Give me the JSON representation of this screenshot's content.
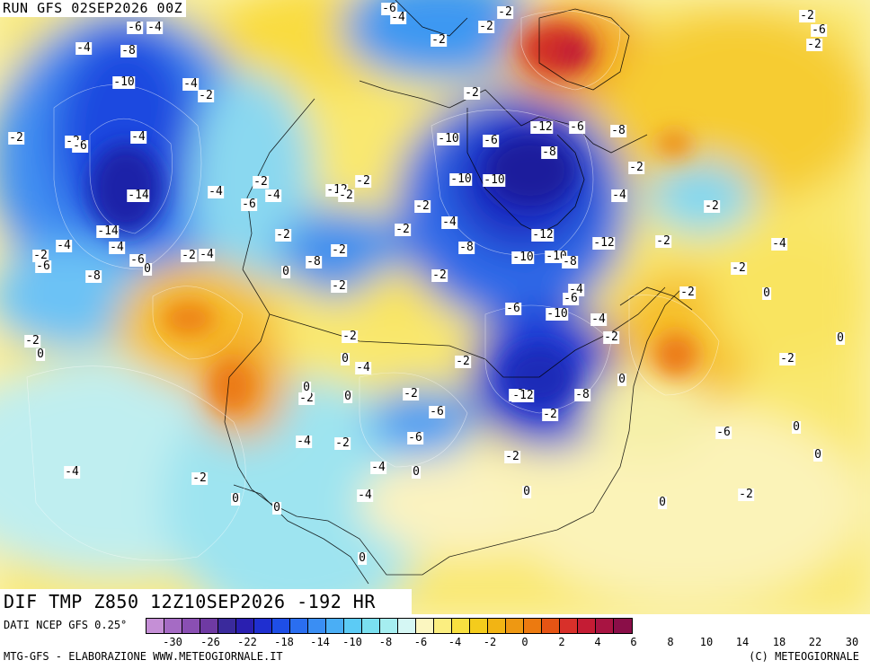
{
  "run_title": "RUN GFS 02SEP2026 00Z",
  "field_title": "DIF TMP Z850 12Z10SEP2026 -192 HR",
  "data_source": "DATI NCEP GFS 0.25°",
  "credit_left": "MTG-GFS - ELABORAZIONE WWW.METEOGIORNALE.IT",
  "credit_right": "(C) METEOGIORNALE",
  "colorbar": {
    "colors": [
      "#c58fd6",
      "#a56bc4",
      "#8a4fb3",
      "#6f3aa3",
      "#3a2a9c",
      "#2a1fb0",
      "#1f2fd0",
      "#1e4ee6",
      "#2a6ef0",
      "#3a8ef3",
      "#4aaef5",
      "#5ccbf5",
      "#7ae0f0",
      "#a5eef0",
      "#d5f7f4",
      "#fbf6c0",
      "#fbee80",
      "#f8e040",
      "#f4cc1c",
      "#f2b414",
      "#ee9812",
      "#ec7a10",
      "#e65414",
      "#d8302a",
      "#c41c34",
      "#a81442",
      "#8a0e48"
    ],
    "ticks": [
      "-30",
      "-26",
      "-22",
      "-18",
      "-14",
      "-10",
      "-8",
      "-6",
      "-4",
      "-2",
      "0",
      "2",
      "4",
      "6",
      "8",
      "10",
      "14",
      "18",
      "22",
      "30"
    ]
  },
  "map_labels": [
    "-6",
    "-4",
    "-2",
    "-2",
    "-6",
    "-4",
    "-2",
    "-6",
    "-4",
    "-2",
    "-2",
    "-8",
    "-2",
    "-2",
    "-10",
    "-4",
    "-2",
    "-2",
    "-6",
    "-4",
    "-12",
    "-6",
    "-8",
    "-10",
    "-6",
    "-8",
    "-2",
    "-14",
    "-10",
    "-2",
    "-4",
    "-10",
    "-12",
    "-4",
    "-2",
    "-2",
    "-6",
    "-2",
    "-4",
    "-2",
    "-4",
    "-14",
    "-4",
    "-2",
    "-2",
    "-4",
    "-12",
    "-2",
    "-12",
    "-4",
    "-2",
    "-2",
    "-4",
    "-8",
    "-10",
    "-6",
    "-8",
    "-2",
    "-2",
    "0",
    "-8",
    "-10",
    "-8",
    "-6",
    "-2",
    "0",
    "-2",
    "-4",
    "-6",
    "-6",
    "0",
    "-2",
    "-10",
    "-4",
    "-2",
    "-2",
    "0",
    "-4",
    "-2",
    "0",
    "-2",
    "-8",
    "-12",
    "-8",
    "0",
    "-2",
    "-6",
    "-6",
    "0",
    "-2",
    "-4",
    "-2",
    "-2",
    "0",
    "0",
    "-2",
    "-2",
    "-4",
    "0",
    "-2",
    "-4",
    "0",
    "0",
    "-6",
    "0",
    "0",
    "0",
    "0",
    "0",
    "-2",
    "-4"
  ],
  "legend_unit_note": ""
}
